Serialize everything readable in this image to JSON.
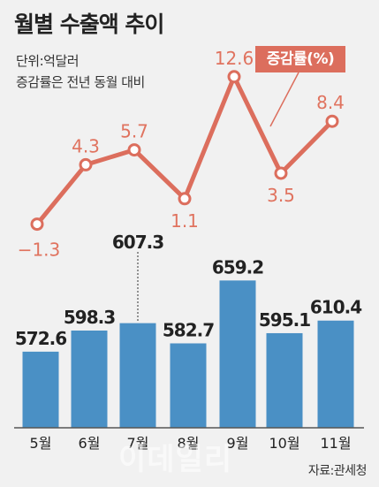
{
  "header": {
    "title": "월별 수출액 추이",
    "unit_label": "단위:억달러",
    "line_label": "증감률은 전년 동월 대비"
  },
  "legend": {
    "growth_label": "증감률(%)"
  },
  "source": "자료:관세청",
  "watermark": "이데일리",
  "colors": {
    "background": "#f1f1f1",
    "bar": "#4a90c5",
    "line": "#dc6e5d",
    "growth_text": "#e0735f",
    "bar_text": "#222222"
  },
  "chart_data": [
    {
      "type": "bar",
      "title": "월별 수출액 추이",
      "ylabel": "억달러",
      "categories": [
        "5월",
        "6월",
        "7월",
        "8월",
        "9월",
        "10월",
        "11월"
      ],
      "values": [
        572.6,
        598.3,
        607.3,
        582.7,
        659.2,
        595.1,
        610.4
      ],
      "value_labels": [
        "572.6",
        "598.3",
        "607.3",
        "582.7",
        "659.2",
        "595.1",
        "610.4"
      ]
    },
    {
      "type": "line",
      "series_name": "증감률(%)",
      "categories": [
        "5월",
        "6월",
        "7월",
        "8월",
        "9월",
        "10월",
        "11월"
      ],
      "values": [
        -1.3,
        4.3,
        5.7,
        1.1,
        12.6,
        3.5,
        8.4
      ],
      "value_labels": [
        "−1.3",
        "4.3",
        "5.7",
        "1.1",
        "12.6",
        "3.5",
        "8.4"
      ]
    }
  ]
}
